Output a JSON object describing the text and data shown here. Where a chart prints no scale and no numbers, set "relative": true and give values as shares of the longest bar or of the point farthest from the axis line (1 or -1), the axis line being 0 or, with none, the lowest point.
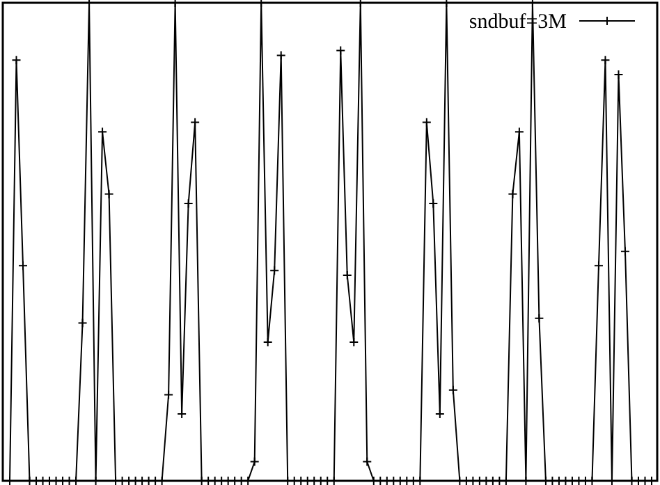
{
  "chart_data": {
    "type": "line",
    "relative": true,
    "marker": "cross",
    "line_style": "solid",
    "legend": "top right",
    "categories": [
      null,
      null,
      null,
      null,
      null,
      null,
      null,
      null,
      null,
      null,
      null,
      null,
      null,
      null,
      null,
      null,
      null,
      null,
      null,
      null,
      null,
      null,
      null,
      null,
      null,
      null,
      null,
      null,
      null,
      null,
      null,
      null,
      null,
      null,
      null,
      null,
      null,
      null,
      null,
      null,
      null,
      null,
      null,
      null,
      null,
      null,
      null,
      null,
      null,
      null,
      null,
      null,
      null,
      null,
      null,
      null,
      null,
      null,
      null,
      null,
      null,
      null,
      null,
      null,
      null,
      null,
      null,
      null,
      null,
      null,
      null,
      null,
      null,
      null,
      null,
      null,
      null,
      null,
      null,
      null,
      null,
      null,
      null,
      null,
      null,
      null,
      null,
      null,
      null,
      null,
      null,
      null,
      null,
      null,
      null,
      null,
      null,
      null
    ],
    "series": [
      {
        "name": "sndbuf=3M",
        "color": "#000000",
        "values": [
          0,
          0.88,
          0.45,
          0,
          0,
          0,
          0,
          0,
          0,
          0,
          0,
          0.33,
          1,
          0,
          0.73,
          0.6,
          0,
          0,
          0,
          0,
          0,
          0,
          0,
          0,
          0.18,
          1,
          0.14,
          0.58,
          0.75,
          0,
          0,
          0,
          0,
          0,
          0,
          0,
          0,
          0.04,
          1,
          0.29,
          0.44,
          0.89,
          0,
          0,
          0,
          0,
          0,
          0,
          0,
          0,
          0.9,
          0.43,
          0.29,
          1,
          0.04,
          0,
          0,
          0,
          0,
          0,
          0,
          0,
          0,
          0.75,
          0.58,
          0.14,
          1,
          0.19,
          0,
          0,
          0,
          0,
          0,
          0,
          0,
          0,
          0.6,
          0.73,
          0,
          1,
          0.34,
          0,
          0,
          0,
          0,
          0,
          0,
          0,
          0,
          0.45,
          0.88,
          0,
          0.85,
          0.48,
          0,
          0,
          0,
          0
        ]
      }
    ]
  }
}
